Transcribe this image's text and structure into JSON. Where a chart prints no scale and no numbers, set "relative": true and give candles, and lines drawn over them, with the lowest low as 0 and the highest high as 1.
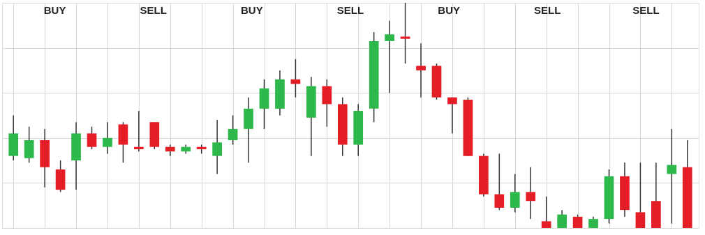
{
  "chart_data": {
    "type": "candlestick",
    "relative": true,
    "grid": true,
    "tick_labels": false,
    "categories": [
      null,
      null,
      null,
      null,
      null,
      null,
      null,
      null,
      null,
      null,
      null,
      null,
      null,
      null,
      null,
      null,
      null,
      null,
      null,
      null,
      null,
      null,
      null,
      null,
      null,
      null,
      null,
      null,
      null,
      null,
      null,
      null,
      null,
      null,
      null,
      null,
      null,
      null,
      null,
      null,
      null,
      null,
      null,
      null
    ],
    "ohlc": [
      [
        0.32,
        0.5,
        0.3,
        0.42
      ],
      [
        0.31,
        0.45,
        0.29,
        0.39
      ],
      [
        0.39,
        0.44,
        0.18,
        0.27
      ],
      [
        0.26,
        0.3,
        0.16,
        0.17
      ],
      [
        0.3,
        0.47,
        0.17,
        0.42
      ],
      [
        0.42,
        0.45,
        0.35,
        0.36
      ],
      [
        0.36,
        0.47,
        0.33,
        0.4
      ],
      [
        0.46,
        0.47,
        0.29,
        0.37
      ],
      [
        0.36,
        0.52,
        0.34,
        0.35
      ],
      [
        0.47,
        0.47,
        0.35,
        0.36
      ],
      [
        0.36,
        0.37,
        0.32,
        0.34
      ],
      [
        0.34,
        0.37,
        0.33,
        0.36
      ],
      [
        0.36,
        0.37,
        0.33,
        0.35
      ],
      [
        0.32,
        0.48,
        0.24,
        0.38
      ],
      [
        0.39,
        0.5,
        0.37,
        0.44
      ],
      [
        0.44,
        0.58,
        0.29,
        0.53
      ],
      [
        0.53,
        0.66,
        0.44,
        0.62
      ],
      [
        0.53,
        0.7,
        0.5,
        0.66
      ],
      [
        0.66,
        0.75,
        0.58,
        0.64
      ],
      [
        0.49,
        0.67,
        0.32,
        0.63
      ],
      [
        0.63,
        0.66,
        0.45,
        0.55
      ],
      [
        0.55,
        0.58,
        0.32,
        0.37
      ],
      [
        0.37,
        0.55,
        0.32,
        0.52
      ],
      [
        0.53,
        0.87,
        0.47,
        0.83
      ],
      [
        0.83,
        0.92,
        0.6,
        0.86
      ],
      [
        0.85,
        1.0,
        0.73,
        0.84
      ],
      [
        0.72,
        0.82,
        0.58,
        0.7
      ],
      [
        0.72,
        0.73,
        0.57,
        0.58
      ],
      [
        0.58,
        0.58,
        0.42,
        0.55
      ],
      [
        0.57,
        0.58,
        0.32,
        0.32
      ],
      [
        0.32,
        0.33,
        0.14,
        0.15
      ],
      [
        0.15,
        0.33,
        0.08,
        0.09
      ],
      [
        0.09,
        0.24,
        0.07,
        0.16
      ],
      [
        0.16,
        0.27,
        0.04,
        0.12
      ],
      [
        0.03,
        0.14,
        0.0,
        0.0
      ],
      [
        0.0,
        0.08,
        0.0,
        0.06
      ],
      [
        0.05,
        0.06,
        0.0,
        0.0
      ],
      [
        0.0,
        0.05,
        0.0,
        0.04
      ],
      [
        0.04,
        0.26,
        0.02,
        0.23
      ],
      [
        0.23,
        0.29,
        0.05,
        0.08
      ],
      [
        0.07,
        0.29,
        0.0,
        0.0
      ],
      [
        0.12,
        0.29,
        0.0,
        0.0
      ],
      [
        0.24,
        0.44,
        0.02,
        0.28
      ],
      [
        0.27,
        0.39,
        0.0,
        0.0
      ]
    ],
    "colors": [
      "#2db84b",
      "#2db84b",
      "#e41e26",
      "#e41e26",
      "#2db84b",
      "#e41e26",
      "#2db84b",
      "#e41e26",
      "#e41e26",
      "#e41e26",
      "#e41e26",
      "#2db84b",
      "#e41e26",
      "#2db84b",
      "#2db84b",
      "#2db84b",
      "#2db84b",
      "#2db84b",
      "#e41e26",
      "#2db84b",
      "#e41e26",
      "#e41e26",
      "#2db84b",
      "#2db84b",
      "#2db84b",
      "#e41e26",
      "#e41e26",
      "#e41e26",
      "#e41e26",
      "#e41e26",
      "#e41e26",
      "#e41e26",
      "#2db84b",
      "#e41e26",
      "#e41e26",
      "#2db84b",
      "#e41e26",
      "#2db84b",
      "#2db84b",
      "#e41e26",
      "#e41e26",
      "#e41e26",
      "#2db84b",
      "#e41e26"
    ],
    "annotations": [
      "BUY",
      "SELL",
      "BUY",
      "SELL",
      "BUY",
      "SELL",
      "SELL"
    ]
  }
}
